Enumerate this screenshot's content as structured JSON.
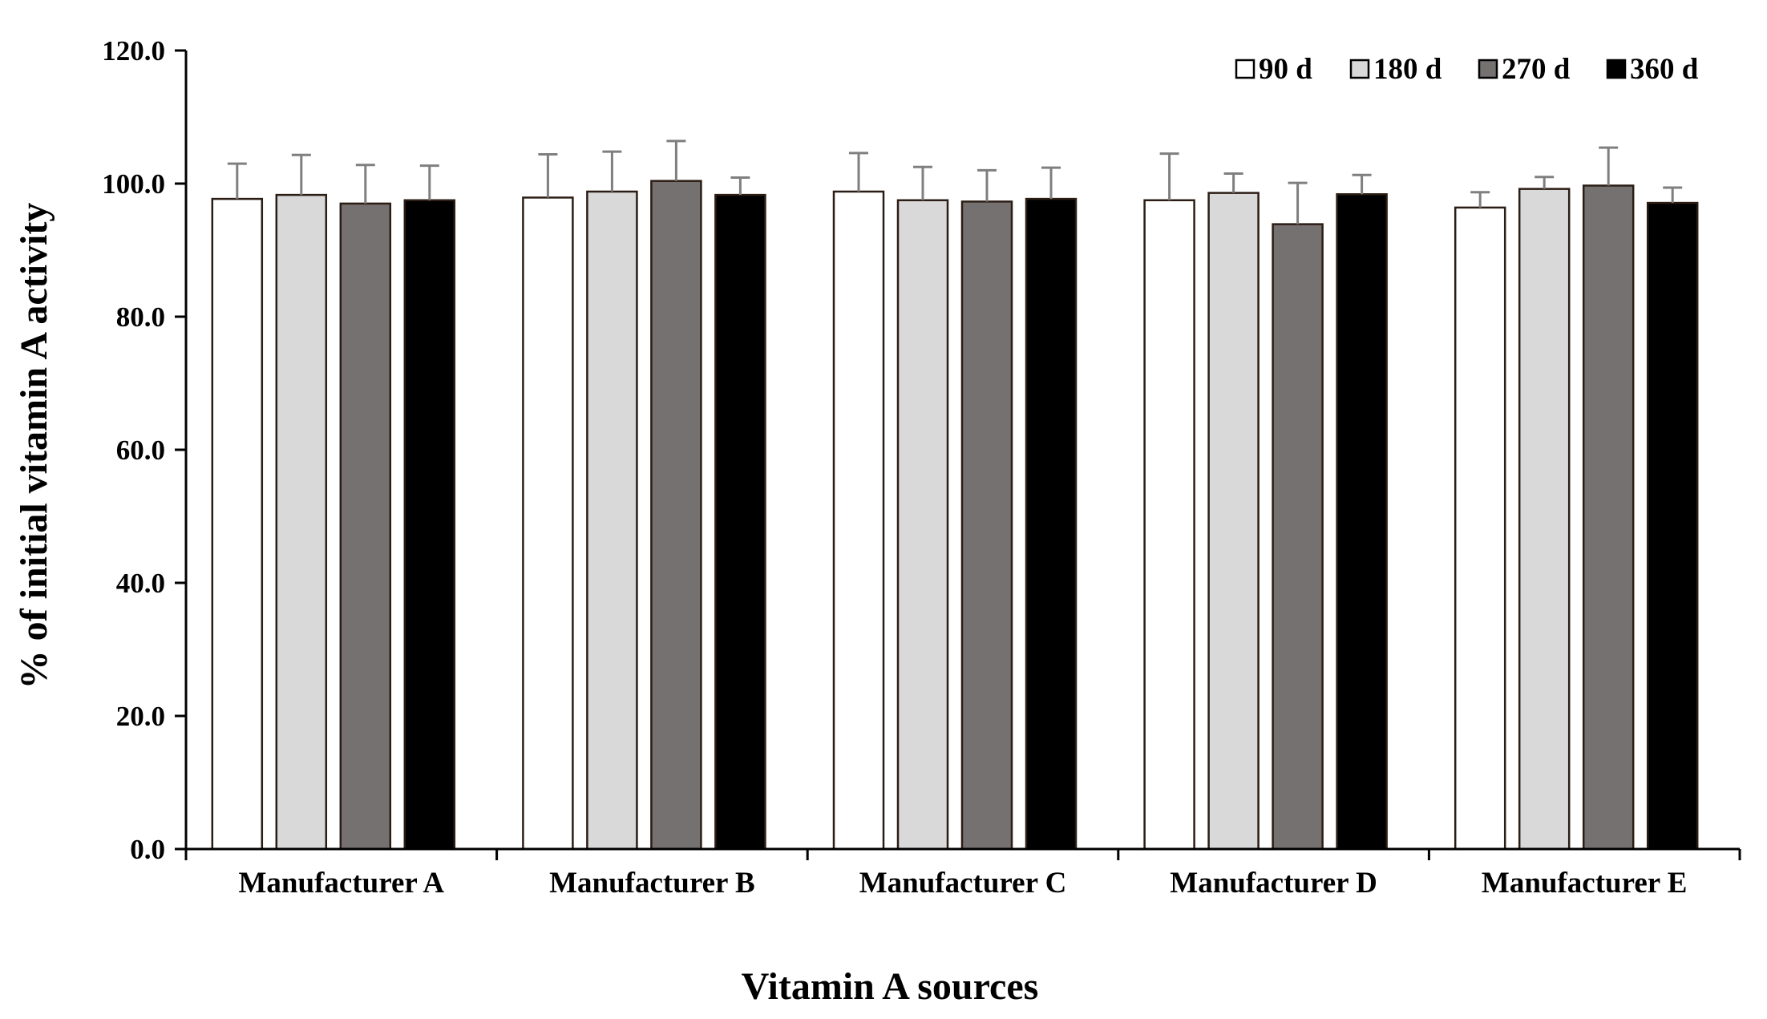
{
  "chart_data": {
    "type": "bar",
    "title": "",
    "xlabel": "Vitamin A sources",
    "ylabel": "% of initial vitamin A activity",
    "ylim": [
      0,
      120
    ],
    "yticks": [
      "0.0",
      "20.0",
      "40.0",
      "60.0",
      "80.0",
      "100.0",
      "120.0"
    ],
    "categories": [
      "Manufacturer A",
      "Manufacturer B",
      "Manufacturer C",
      "Manufacturer D",
      "Manufacturer E"
    ],
    "legend_position": "top-right",
    "series": [
      {
        "name": "90 d",
        "color": "#ffffff",
        "values": [
          97.7,
          97.9,
          98.8,
          97.5,
          96.4
        ],
        "errors": [
          5.3,
          6.5,
          5.8,
          7.0,
          2.3
        ]
      },
      {
        "name": "180 d",
        "color": "#d9d9d9",
        "values": [
          98.3,
          98.8,
          97.5,
          98.6,
          99.2
        ],
        "errors": [
          6.0,
          6.0,
          5.0,
          2.9,
          1.8
        ]
      },
      {
        "name": "270 d",
        "color": "#767171",
        "values": [
          97.0,
          100.4,
          97.3,
          93.9,
          99.7
        ],
        "errors": [
          5.8,
          6.0,
          4.7,
          6.2,
          5.7
        ]
      },
      {
        "name": "360 d",
        "color": "#000000",
        "values": [
          97.5,
          98.3,
          97.7,
          98.4,
          97.1
        ],
        "errors": [
          5.2,
          2.6,
          4.7,
          2.9,
          2.3
        ]
      }
    ]
  }
}
